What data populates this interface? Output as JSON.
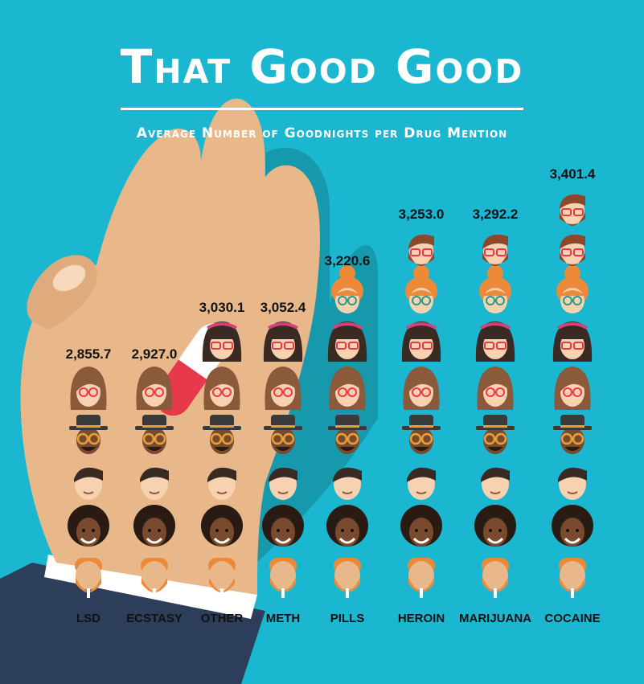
{
  "title": "That Good Good",
  "subtitle": "Average Number of Goodnights per Drug Mention",
  "colors": {
    "background": "#1bb7d0",
    "skin": "#e8b88a",
    "sleeve": "#2c3e5a",
    "pill_red": "#e8394a",
    "hair_orange": "#ec8a3a",
    "hair_dark": "#3a2a24",
    "hair_brown": "#8a5a3a",
    "afro": "#2a1a14",
    "hat": "#3a3a3a"
  },
  "chart_data": {
    "type": "bar",
    "title": "That Good Good",
    "subtitle": "Average Number of Goodnights per Drug Mention",
    "categories": [
      "LSD",
      "Ecstasy",
      "Other",
      "Meth",
      "Pills",
      "Heroin",
      "Marijuana",
      "Cocaine"
    ],
    "values": [
      2855.7,
      2927.0,
      3030.1,
      3052.4,
      3220.6,
      3253.0,
      3292.2,
      3401.4
    ],
    "value_labels": [
      "2,855.7",
      "2,927.0",
      "3,030.1",
      "3,052.4",
      "3,220.6",
      "3,253.0",
      "3,292.2",
      "3,401.4"
    ],
    "mark": "stacked face icons",
    "face_sequence": [
      "bearded-man-face",
      "afro-man-face",
      "short-hair-man-face",
      "hat-glasses-man-face",
      "long-hair-woman-face",
      "bangs-woman-face",
      "bun-woman-face",
      "hipster-man-face"
    ],
    "units_per_face": 400,
    "grid": false,
    "legend": "none"
  }
}
